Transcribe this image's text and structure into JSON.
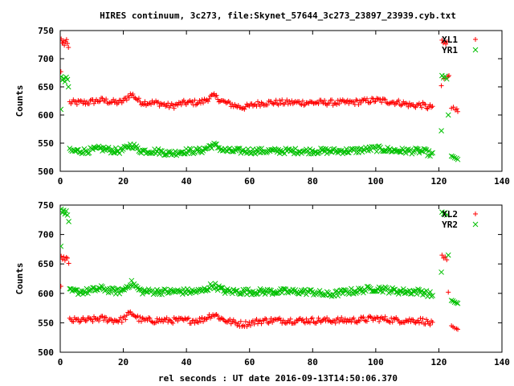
{
  "title": "HIRES continuum, 3c273, file:Skynet_57644_3c273_23897_23939.cyb.txt",
  "xlabel": "rel seconds : UT date 2016-09-13T14:50:06.370",
  "chart_data": [
    {
      "type": "scatter",
      "ylabel": "Counts",
      "xlim": [
        0,
        140
      ],
      "ylim": [
        500,
        750
      ],
      "xticks": [
        0,
        20,
        40,
        60,
        80,
        100,
        120,
        140
      ],
      "yticks": [
        500,
        550,
        600,
        650,
        700,
        750
      ],
      "grid": false,
      "legend_position": "top-right",
      "series": [
        {
          "name": "XL1",
          "marker": "plus",
          "color": "#ff0000",
          "x_range": [
            0,
            126.5
          ],
          "baseline": 622,
          "bumps": [
            [
              22.5,
              14,
              2.0
            ],
            [
              48.5,
              11,
              2.5
            ],
            [
              35,
              -6,
              3.0
            ],
            [
              58,
              -8,
              4.0
            ],
            [
              13,
              4,
              3.0
            ],
            [
              100,
              4,
              5.0
            ],
            [
              112,
              -5,
              3.0
            ],
            [
              117,
              -8,
              2.0
            ]
          ],
          "extra_points": [
            [
              0.3,
              735
            ],
            [
              0.6,
              728
            ],
            [
              1.0,
              732
            ],
            [
              1.3,
              724
            ],
            [
              1.7,
              730
            ],
            [
              2.0,
              734
            ],
            [
              2.3,
              727
            ],
            [
              0.2,
              677
            ],
            [
              2.6,
              720
            ],
            [
              0.8,
              728
            ],
            [
              121.0,
              733
            ],
            [
              121.4,
              728
            ],
            [
              121.8,
              731
            ],
            [
              122.2,
              726
            ],
            [
              122.6,
              730
            ],
            [
              120.8,
              652
            ],
            [
              121.6,
              665
            ],
            [
              122.9,
              668
            ],
            [
              123.2,
              670
            ],
            [
              124.0,
              612
            ],
            [
              125.2,
              609
            ],
            [
              126.0,
              606
            ],
            [
              124.6,
              614
            ],
            [
              125.7,
              611
            ]
          ]
        },
        {
          "name": "YR1",
          "marker": "cross",
          "color": "#00c000",
          "x_range": [
            0,
            126.5
          ],
          "baseline": 536,
          "bumps": [
            [
              22.5,
              10,
              2.0
            ],
            [
              48.5,
              10,
              2.5
            ],
            [
              35,
              -4,
              3.0
            ],
            [
              13,
              4,
              3.0
            ],
            [
              100,
              4,
              5.0
            ],
            [
              118,
              -6,
              2.0
            ]
          ],
          "extra_points": [
            [
              0.3,
              668
            ],
            [
              0.7,
              662
            ],
            [
              1.1,
              665
            ],
            [
              1.5,
              659
            ],
            [
              1.9,
              667
            ],
            [
              2.3,
              663
            ],
            [
              2.6,
              650
            ],
            [
              0.2,
              610
            ],
            [
              121.0,
              670
            ],
            [
              121.5,
              666
            ],
            [
              122.0,
              669
            ],
            [
              122.5,
              664
            ],
            [
              120.8,
              572
            ],
            [
              123.0,
              600
            ],
            [
              124.0,
              527
            ],
            [
              125.0,
              524
            ],
            [
              126.0,
              521
            ],
            [
              124.5,
              526
            ],
            [
              125.6,
              523
            ]
          ]
        }
      ]
    },
    {
      "type": "scatter",
      "ylabel": "Counts",
      "xlim": [
        0,
        140
      ],
      "ylim": [
        500,
        750
      ],
      "xticks": [
        0,
        20,
        40,
        60,
        80,
        100,
        120,
        140
      ],
      "yticks": [
        500,
        550,
        600,
        650,
        700,
        750
      ],
      "grid": false,
      "legend_position": "top-right",
      "series": [
        {
          "name": "XL2",
          "marker": "plus",
          "color": "#ff0000",
          "x_range": [
            0,
            126.5
          ],
          "baseline": 554,
          "bumps": [
            [
              22.5,
              12,
              2.0
            ],
            [
              48.5,
              10,
              2.5
            ],
            [
              58,
              -6,
              4.0
            ],
            [
              13,
              3,
              3.0
            ],
            [
              100,
              3,
              5.0
            ],
            [
              118,
              -6,
              2.0
            ]
          ],
          "extra_points": [
            [
              0.3,
              663
            ],
            [
              0.7,
              658
            ],
            [
              1.1,
              662
            ],
            [
              1.5,
              656
            ],
            [
              1.9,
              661
            ],
            [
              2.3,
              660
            ],
            [
              2.7,
              651
            ],
            [
              0.2,
              612
            ],
            [
              121.0,
              665
            ],
            [
              121.5,
              660
            ],
            [
              122.0,
              662
            ],
            [
              122.5,
              657
            ],
            [
              123.0,
              602
            ],
            [
              124.0,
              545
            ],
            [
              125.0,
              541
            ],
            [
              126.0,
              539
            ],
            [
              124.5,
              543
            ],
            [
              125.6,
              540
            ]
          ]
        },
        {
          "name": "YR2",
          "marker": "cross",
          "color": "#00c000",
          "x_range": [
            0,
            126.5
          ],
          "baseline": 603,
          "bumps": [
            [
              22.5,
              14,
              2.0
            ],
            [
              48.5,
              10,
              2.5
            ],
            [
              13,
              5,
              3.0
            ],
            [
              100,
              5,
              5.0
            ],
            [
              85,
              -5,
              4.0
            ],
            [
              118,
              -6,
              2.0
            ]
          ],
          "extra_points": [
            [
              0.3,
              743
            ],
            [
              0.7,
              737
            ],
            [
              1.1,
              741
            ],
            [
              1.5,
              735
            ],
            [
              1.9,
              740
            ],
            [
              2.3,
              733
            ],
            [
              2.7,
              722
            ],
            [
              0.2,
              680
            ],
            [
              121.0,
              738
            ],
            [
              121.5,
              735
            ],
            [
              122.0,
              737
            ],
            [
              122.5,
              733
            ],
            [
              120.8,
              636
            ],
            [
              123.0,
              665
            ],
            [
              124.0,
              588
            ],
            [
              125.0,
              585
            ],
            [
              126.0,
              583
            ],
            [
              124.5,
              587
            ],
            [
              125.6,
              584
            ]
          ]
        }
      ]
    }
  ]
}
